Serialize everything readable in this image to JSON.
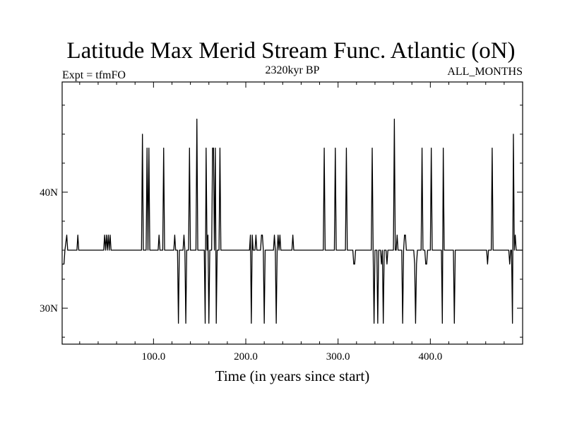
{
  "chart_data": {
    "type": "line",
    "title": "Latitude Max Merid Stream Func. Atlantic (oN)",
    "subtitle_left": "Expt = tfmFO",
    "subtitle_center": "2320kyr BP",
    "subtitle_right": "ALL_MONTHS",
    "xlabel": "Time (in years since start)",
    "ylabel": "",
    "xlim": [
      1,
      500
    ],
    "ylim": [
      26.9,
      49.5
    ],
    "x_ticks": [
      {
        "value": 100,
        "label": "100.0"
      },
      {
        "value": 200,
        "label": "200.0"
      },
      {
        "value": 300,
        "label": "300.0"
      },
      {
        "value": 400,
        "label": "400.0"
      }
    ],
    "y_ticks": [
      {
        "value": 30,
        "label": "30N"
      },
      {
        "value": 40,
        "label": "40N"
      }
    ],
    "grid": false,
    "baseline": 35,
    "series": [
      {
        "points": [
          [
            1,
            33.8
          ],
          [
            3,
            33.8
          ],
          [
            4,
            35
          ],
          [
            6,
            36.3
          ],
          [
            7,
            35
          ],
          [
            17,
            35
          ],
          [
            18,
            36.3
          ],
          [
            19,
            35
          ],
          [
            46,
            35
          ],
          [
            47,
            36.3
          ],
          [
            48,
            35
          ],
          [
            49,
            36.3
          ],
          [
            50,
            35
          ],
          [
            51,
            36.3
          ],
          [
            52,
            35
          ],
          [
            53,
            36.3
          ],
          [
            54,
            35
          ],
          [
            87,
            35
          ],
          [
            88,
            45.0
          ],
          [
            89,
            35
          ],
          [
            92,
            35
          ],
          [
            93,
            43.8
          ],
          [
            94,
            35
          ],
          [
            95,
            43.8
          ],
          [
            96,
            35
          ],
          [
            105,
            35
          ],
          [
            106,
            36.3
          ],
          [
            107,
            35
          ],
          [
            110,
            35
          ],
          [
            111,
            43.8
          ],
          [
            112,
            35
          ],
          [
            122,
            35
          ],
          [
            123,
            36.3
          ],
          [
            124,
            35
          ],
          [
            126,
            35
          ],
          [
            127,
            28.7
          ],
          [
            128,
            35
          ],
          [
            132,
            35
          ],
          [
            133,
            36.3
          ],
          [
            134,
            35
          ],
          [
            135,
            28.7
          ],
          [
            136,
            35
          ],
          [
            138,
            35
          ],
          [
            139,
            43.8
          ],
          [
            140,
            35
          ],
          [
            146,
            35
          ],
          [
            147,
            46.3
          ],
          [
            148,
            35
          ],
          [
            155,
            35
          ],
          [
            156,
            28.7
          ],
          [
            157,
            43.8
          ],
          [
            158,
            35
          ],
          [
            159,
            36.3
          ],
          [
            160,
            28.7
          ],
          [
            161,
            35
          ],
          [
            163,
            35
          ],
          [
            164,
            43.8
          ],
          [
            165,
            43.8
          ],
          [
            166,
            35
          ],
          [
            167,
            43.8
          ],
          [
            168,
            28.7
          ],
          [
            169,
            35
          ],
          [
            171,
            35
          ],
          [
            172,
            43.8
          ],
          [
            173,
            35
          ],
          [
            204,
            35
          ],
          [
            205,
            36.3
          ],
          [
            206,
            28.7
          ],
          [
            207,
            36.3
          ],
          [
            208,
            35
          ],
          [
            210,
            35
          ],
          [
            211,
            36.3
          ],
          [
            212,
            35
          ],
          [
            216,
            35
          ],
          [
            217,
            36.3
          ],
          [
            218,
            36.3
          ],
          [
            219,
            35
          ],
          [
            220,
            28.7
          ],
          [
            221,
            35
          ],
          [
            230,
            35
          ],
          [
            231,
            36.3
          ],
          [
            232,
            35
          ],
          [
            233,
            28.7
          ],
          [
            234,
            35
          ],
          [
            235,
            36.3
          ],
          [
            236,
            35
          ],
          [
            237,
            36.3
          ],
          [
            238,
            35
          ],
          [
            250,
            35
          ],
          [
            251,
            36.3
          ],
          [
            252,
            35
          ],
          [
            284,
            35
          ],
          [
            285,
            43.8
          ],
          [
            286,
            35
          ],
          [
            296,
            35
          ],
          [
            297,
            43.8
          ],
          [
            298,
            35
          ],
          [
            308,
            35
          ],
          [
            309,
            43.8
          ],
          [
            310,
            35
          ],
          [
            316,
            35
          ],
          [
            317,
            33.8
          ],
          [
            318,
            33.8
          ],
          [
            319,
            35
          ],
          [
            336,
            35
          ],
          [
            337,
            43.8
          ],
          [
            338,
            35
          ],
          [
            339,
            28.7
          ],
          [
            340,
            35
          ],
          [
            342,
            35
          ],
          [
            343,
            28.7
          ],
          [
            344,
            35
          ],
          [
            346,
            35
          ],
          [
            347,
            33.8
          ],
          [
            348,
            35
          ],
          [
            349,
            28.7
          ],
          [
            350,
            35
          ],
          [
            352,
            35
          ],
          [
            353,
            33.8
          ],
          [
            354,
            35
          ],
          [
            360,
            35
          ],
          [
            361,
            46.3
          ],
          [
            362,
            35
          ],
          [
            363,
            35
          ],
          [
            364,
            36.3
          ],
          [
            365,
            35
          ],
          [
            369,
            35
          ],
          [
            370,
            28.7
          ],
          [
            371,
            35
          ],
          [
            372,
            36.3
          ],
          [
            373,
            36.3
          ],
          [
            374,
            35
          ],
          [
            382,
            35
          ],
          [
            383,
            33.8
          ],
          [
            384,
            28.7
          ],
          [
            385,
            33.8
          ],
          [
            386,
            35
          ],
          [
            390,
            35
          ],
          [
            391,
            43.8
          ],
          [
            392,
            35
          ],
          [
            394,
            35
          ],
          [
            395,
            33.8
          ],
          [
            396,
            33.8
          ],
          [
            397,
            35
          ],
          [
            400,
            35
          ],
          [
            401,
            43.8
          ],
          [
            402,
            35
          ],
          [
            412,
            35
          ],
          [
            413,
            28.7
          ],
          [
            414,
            43.8
          ],
          [
            415,
            35
          ],
          [
            425,
            35
          ],
          [
            426,
            28.7
          ],
          [
            427,
            35
          ],
          [
            461,
            35
          ],
          [
            462,
            33.8
          ],
          [
            463,
            35
          ],
          [
            466,
            35
          ],
          [
            467,
            43.8
          ],
          [
            468,
            35
          ],
          [
            485,
            35
          ],
          [
            486,
            33.8
          ],
          [
            487,
            35
          ],
          [
            488,
            35
          ],
          [
            489,
            28.7
          ],
          [
            490,
            45.0
          ],
          [
            491,
            35
          ],
          [
            492,
            36.3
          ],
          [
            493,
            35
          ],
          [
            500,
            35
          ]
        ]
      }
    ]
  }
}
